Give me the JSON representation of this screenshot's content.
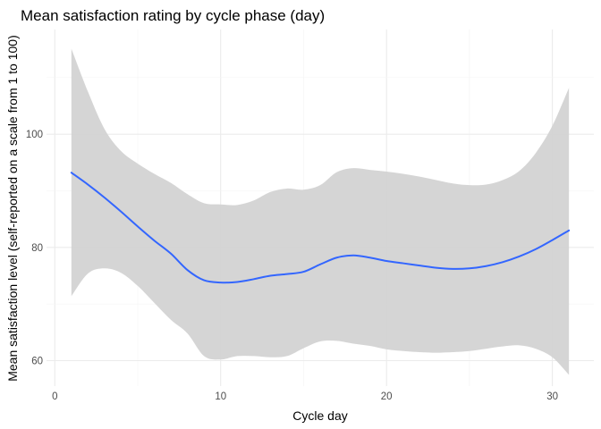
{
  "chart_data": {
    "type": "line",
    "title": "Mean satisfaction rating by cycle phase (day)",
    "xlabel": "Cycle day",
    "ylabel": "Mean satisfaction level (self-reported on a scale from 1 to 100)",
    "xlim": [
      -0.5,
      32.5
    ],
    "ylim": [
      55.5,
      118.5
    ],
    "x_ticks": [
      0,
      10,
      20,
      30
    ],
    "y_ticks": [
      60,
      80,
      100
    ],
    "grid": true,
    "legend": "none",
    "series": [
      {
        "style": "smooth-line-with-confidence-band",
        "color": "#3366FF",
        "band_color": "#d3d3d3",
        "x": [
          1,
          2,
          3,
          4,
          5,
          6,
          7,
          8,
          9,
          10,
          11,
          12,
          13,
          14,
          15,
          16,
          17,
          18,
          19,
          20,
          21,
          22,
          23,
          24,
          25,
          26,
          27,
          28,
          29,
          30,
          31
        ],
        "y": [
          93.2,
          91.1,
          88.8,
          86.3,
          83.7,
          81.2,
          78.9,
          76.0,
          74.2,
          73.8,
          73.9,
          74.4,
          75.0,
          75.3,
          75.7,
          77.0,
          78.2,
          78.6,
          78.2,
          77.6,
          77.2,
          76.8,
          76.4,
          76.2,
          76.3,
          76.7,
          77.4,
          78.4,
          79.7,
          81.3,
          83.0
        ],
        "lower": [
          71.4,
          75.4,
          76.3,
          75.5,
          73.2,
          70.2,
          67.2,
          64.8,
          60.8,
          60.2,
          60.8,
          60.8,
          60.6,
          60.8,
          62.2,
          63.4,
          63.5,
          63.0,
          62.6,
          62.0,
          61.7,
          61.5,
          61.4,
          61.5,
          61.7,
          62.1,
          62.5,
          62.7,
          62.1,
          60.6,
          57.5
        ],
        "upper": [
          115.1,
          107.5,
          100.9,
          97.0,
          94.8,
          93.0,
          91.4,
          89.4,
          87.8,
          87.6,
          87.5,
          88.3,
          89.8,
          90.4,
          90.2,
          91.0,
          93.3,
          94.0,
          93.7,
          93.4,
          93.0,
          92.5,
          91.9,
          91.3,
          91.0,
          91.1,
          91.9,
          93.5,
          96.7,
          101.5,
          108.2
        ]
      }
    ]
  }
}
